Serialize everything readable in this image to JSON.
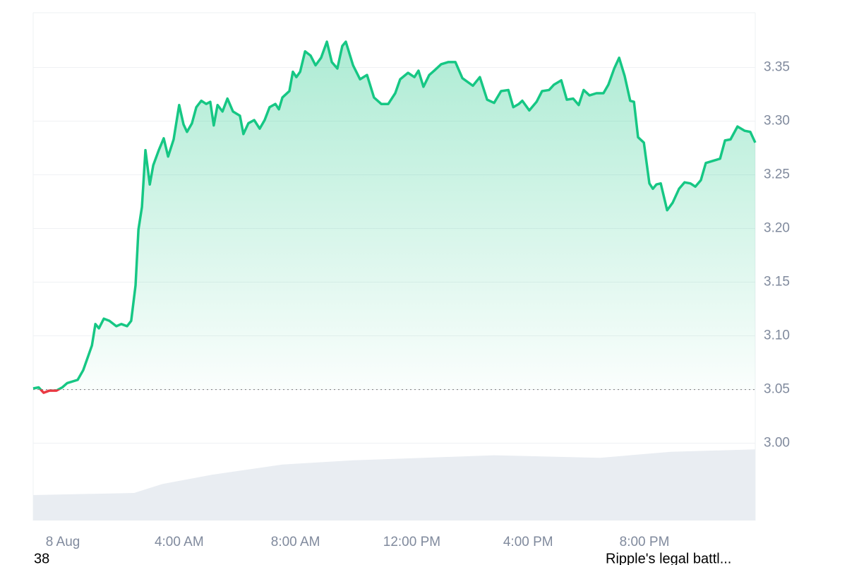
{
  "chart_data": {
    "type": "line",
    "x": [
      -1.02,
      -0.83,
      -0.66,
      -0.46,
      -0.22,
      -0.02,
      0.15,
      0.51,
      0.7,
      0.87,
      1.0,
      1.12,
      1.24,
      1.41,
      1.6,
      1.84,
      2.01,
      2.21,
      2.35,
      2.5,
      2.6,
      2.72,
      2.84,
      2.99,
      3.11,
      3.3,
      3.47,
      3.62,
      3.81,
      4.0,
      4.15,
      4.27,
      4.44,
      4.59,
      4.76,
      4.93,
      5.07,
      5.19,
      5.32,
      5.49,
      5.66,
      5.85,
      6.09,
      6.21,
      6.38,
      6.58,
      6.77,
      6.94,
      7.11,
      7.31,
      7.43,
      7.55,
      7.79,
      7.91,
      8.03,
      8.16,
      8.33,
      8.52,
      8.69,
      8.88,
      9.08,
      9.25,
      9.44,
      9.61,
      9.73,
      9.98,
      10.22,
      10.46,
      10.7,
      10.95,
      11.19,
      11.43,
      11.6,
      11.87,
      12.09,
      12.23,
      12.4,
      12.6,
      12.77,
      13.01,
      13.25,
      13.5,
      13.74,
      14.1,
      14.34,
      14.59,
      14.83,
      15.07,
      15.32,
      15.49,
      15.68,
      15.8,
      16.04,
      16.29,
      16.48,
      16.72,
      16.89,
      17.14,
      17.33,
      17.55,
      17.74,
      17.91,
      18.11,
      18.35,
      18.59,
      18.76,
      18.96,
      19.13,
      19.32,
      19.51,
      19.64,
      19.78,
      19.98,
      20.17,
      20.29,
      20.41,
      20.56,
      20.78,
      20.97,
      21.19,
      21.38,
      21.58,
      21.75,
      21.94,
      22.11,
      22.35,
      22.6,
      22.77,
      22.96,
      23.2,
      23.45,
      23.64,
      23.81
    ],
    "series": [
      {
        "color": "#16c784",
        "below_color": "#ea3943",
        "values": [
          3.051,
          3.052,
          3.047,
          3.049,
          3.049,
          3.052,
          3.056,
          3.059,
          3.068,
          3.081,
          3.091,
          3.111,
          3.107,
          3.116,
          3.114,
          3.109,
          3.111,
          3.109,
          3.114,
          3.147,
          3.199,
          3.22,
          3.273,
          3.241,
          3.259,
          3.273,
          3.284,
          3.267,
          3.283,
          3.315,
          3.297,
          3.29,
          3.298,
          3.313,
          3.319,
          3.316,
          3.318,
          3.296,
          3.315,
          3.309,
          3.321,
          3.309,
          3.305,
          3.288,
          3.298,
          3.301,
          3.293,
          3.301,
          3.313,
          3.316,
          3.311,
          3.322,
          3.328,
          3.346,
          3.341,
          3.346,
          3.365,
          3.361,
          3.352,
          3.359,
          3.374,
          3.355,
          3.349,
          3.37,
          3.374,
          3.352,
          3.339,
          3.343,
          3.322,
          3.316,
          3.316,
          3.326,
          3.339,
          3.345,
          3.341,
          3.347,
          3.332,
          3.343,
          3.347,
          3.353,
          3.355,
          3.355,
          3.34,
          3.333,
          3.341,
          3.32,
          3.317,
          3.328,
          3.329,
          3.313,
          3.316,
          3.319,
          3.31,
          3.318,
          3.328,
          3.329,
          3.334,
          3.338,
          3.32,
          3.321,
          3.315,
          3.329,
          3.324,
          3.326,
          3.326,
          3.334,
          3.349,
          3.359,
          3.342,
          3.319,
          3.318,
          3.285,
          3.28,
          3.242,
          3.237,
          3.241,
          3.242,
          3.217,
          3.224,
          3.237,
          3.243,
          3.242,
          3.239,
          3.245,
          3.261,
          3.263,
          3.265,
          3.282,
          3.283,
          3.295,
          3.291,
          3.29,
          3.28
        ]
      }
    ],
    "baseline": 3.05,
    "volume": {
      "x": [
        -1.02,
        2.45,
        3.42,
        5.12,
        7.55,
        9.98,
        12.4,
        14.83,
        18.47,
        20.9,
        23.81
      ],
      "values": [
        30,
        32.5,
        43,
        54,
        66,
        71,
        74,
        77,
        74,
        81,
        84
      ],
      "ylim": [
        0,
        100
      ],
      "color": "#e9edf2"
    },
    "xlim": [
      -1.02,
      23.81
    ],
    "xticks": [
      {
        "value": 0,
        "label": "8 Aug"
      },
      {
        "value": 4,
        "label": "4:00 AM"
      },
      {
        "value": 8,
        "label": "8:00 AM"
      },
      {
        "value": 12,
        "label": "12:00 PM"
      },
      {
        "value": 16,
        "label": "4:00 PM"
      },
      {
        "value": 20,
        "label": "8:00 PM"
      }
    ],
    "ylim": [
      2.928,
      3.401
    ],
    "yticks": [
      {
        "value": 3.0,
        "label": "3.00"
      },
      {
        "value": 3.05,
        "label": "3.05"
      },
      {
        "value": 3.1,
        "label": "3.10"
      },
      {
        "value": 3.15,
        "label": "3.15"
      },
      {
        "value": 3.2,
        "label": "3.20"
      },
      {
        "value": 3.25,
        "label": "3.25"
      },
      {
        "value": 3.3,
        "label": "3.30"
      },
      {
        "value": 3.35,
        "label": "3.35"
      }
    ],
    "grid": true,
    "footer": [
      "38",
      "Ripple's legal battl..."
    ]
  }
}
